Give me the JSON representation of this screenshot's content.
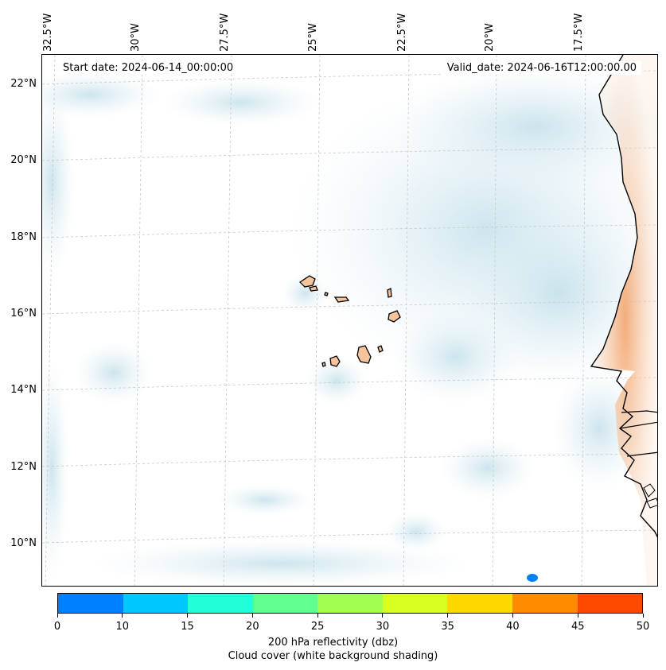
{
  "map": {
    "start_date": "Start date: 2024-06-14_00:00:00",
    "valid_date": "Valid_date: 2024-06-16T12:00:00.00",
    "longitude_labels": [
      "32.5°W",
      "30°W",
      "27.5°W",
      "25°W",
      "22.5°W",
      "20°W",
      "17.5°W"
    ],
    "latitude_labels": [
      "22°N",
      "20°N",
      "18°N",
      "16°N",
      "14°N",
      "12°N",
      "10°N"
    ]
  },
  "colorbar": {
    "ticks": [
      "0",
      "10",
      "15",
      "20",
      "25",
      "30",
      "35",
      "40",
      "45",
      "50"
    ],
    "colors": [
      "#0080ff",
      "#00c8ff",
      "#20ffd8",
      "#60ff90",
      "#a0ff50",
      "#d8ff20",
      "#ffd800",
      "#ff8c00",
      "#ff4800"
    ],
    "title_line1": "200 hPa reflectivity (dbz)",
    "title_line2": "Cloud cover (white background shading)"
  },
  "colors": {
    "cloud": "#cfe6ef",
    "land_warm": "#f6c39a",
    "coast": "#000000",
    "echo": "#0080ff"
  }
}
